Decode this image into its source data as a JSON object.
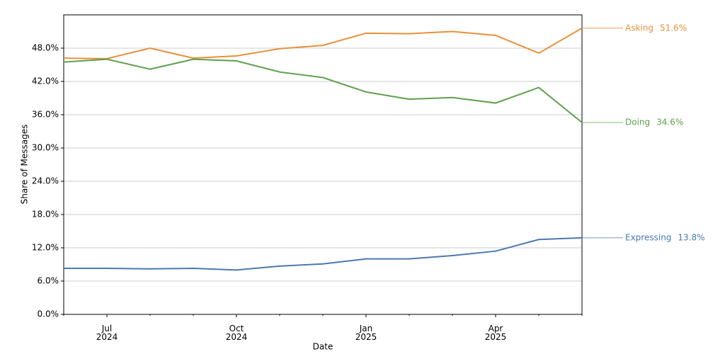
{
  "chart_data": {
    "type": "line",
    "x_label": "Date",
    "y_label": "Share of Messages",
    "x": [
      "2024-06",
      "2024-07",
      "2024-08",
      "2024-09",
      "2024-10",
      "2024-11",
      "2024-12",
      "2025-01",
      "2025-02",
      "2025-03",
      "2025-04",
      "2025-05",
      "2025-06"
    ],
    "xlim": [
      "2024-06",
      "2025-06"
    ],
    "xticks": [
      {
        "value": "2024-07",
        "label": "Jul\n2024"
      },
      {
        "value": "2024-10",
        "label": "Oct\n2024"
      },
      {
        "value": "2025-01",
        "label": "Jan\n2025"
      },
      {
        "value": "2025-04",
        "label": "Apr\n2025"
      }
    ],
    "ylim": [
      0,
      54
    ],
    "yticks": [
      {
        "value": 0,
        "label": "0.0%"
      },
      {
        "value": 6,
        "label": "6.0%"
      },
      {
        "value": 12,
        "label": "12.0%"
      },
      {
        "value": 18,
        "label": "18.0%"
      },
      {
        "value": 24,
        "label": "24.0%"
      },
      {
        "value": 30,
        "label": "30.0%"
      },
      {
        "value": 36,
        "label": "36.0%"
      },
      {
        "value": 42,
        "label": "42.0%"
      },
      {
        "value": 48,
        "label": "48.0%"
      }
    ],
    "grid": true,
    "series": [
      {
        "name": "Asking",
        "color": "#e8903a",
        "values": [
          46.2,
          46.1,
          48.0,
          46.2,
          46.6,
          47.9,
          48.5,
          50.7,
          50.6,
          51.0,
          50.3,
          47.1,
          51.6
        ],
        "end_label": "51.6%"
      },
      {
        "name": "Doing",
        "color": "#5fa04e",
        "values": [
          45.5,
          46.0,
          44.2,
          46.0,
          45.7,
          43.7,
          42.7,
          40.1,
          38.8,
          39.1,
          38.1,
          40.9,
          34.6
        ],
        "end_label": "34.6%"
      },
      {
        "name": "Expressing",
        "color": "#4c78b0",
        "values": [
          8.3,
          8.3,
          8.2,
          8.3,
          8.0,
          8.7,
          9.1,
          10.0,
          10.0,
          10.6,
          11.4,
          13.5,
          13.8
        ],
        "end_label": "13.8%"
      }
    ]
  }
}
